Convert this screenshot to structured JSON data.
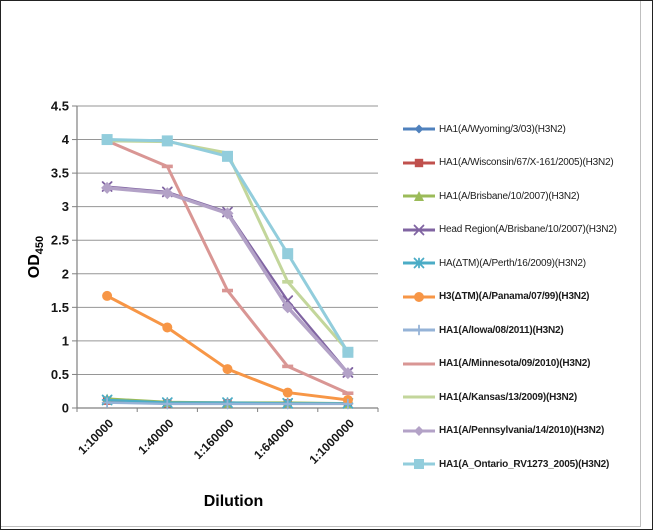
{
  "figure": {
    "title": "",
    "y_axis_label": "OD",
    "y_axis_label_subscript": "450",
    "x_axis_label": "Dilution"
  },
  "colors": {
    "axis": "#808080",
    "gridline": "#969696",
    "tick_label": "#161616",
    "frame_border": "#bfbfbf"
  },
  "chart_data": {
    "type": "line",
    "title": "",
    "xlabel": "Dilution",
    "ylabel": "OD450",
    "ylim": [
      0,
      4.5
    ],
    "ytick_step": 0.5,
    "ytick_labels": [
      "0",
      "0.5",
      "1",
      "1.5",
      "2",
      "2.5",
      "3",
      "3.5",
      "4",
      "4.5"
    ],
    "grid": true,
    "legend_position": "right",
    "categories": [
      "1:10000",
      "1:40000",
      "1:160000",
      "1:640000",
      "1:1000000"
    ],
    "series": [
      {
        "name": "HA1(A/Wyoming/3/03)(H3N2)",
        "color": "#4F81BD",
        "marker": "diamond",
        "marker_size": 4.5,
        "line_width": 2.4,
        "bold_legend": false,
        "values": [
          0.12,
          0.08,
          0.08,
          0.07,
          0.07
        ]
      },
      {
        "name": "HA1(A/Wisconsin/67/X-161/2005)(H3N2)",
        "color": "#C0504D",
        "marker": "square",
        "marker_size": 4.2,
        "line_width": 2.4,
        "bold_legend": false,
        "values": [
          0.11,
          0.07,
          0.07,
          0.07,
          0.07
        ]
      },
      {
        "name": "HA1(A/Brisbane/10/2007)(H3N2)",
        "color": "#9BBB59",
        "marker": "triangle",
        "marker_size": 5.0,
        "line_width": 2.4,
        "bold_legend": false,
        "values": [
          0.14,
          0.09,
          0.08,
          0.08,
          0.07
        ]
      },
      {
        "name": "Head Region(A/Brisbane/10/2007)(H3N2)",
        "color": "#8064A2",
        "marker": "x",
        "marker_size": 4.5,
        "line_width": 2.2,
        "bold_legend": false,
        "values": [
          3.3,
          3.22,
          2.92,
          1.6,
          0.53
        ]
      },
      {
        "name": "HA(ΔTM)(A/Perth/16/2009)(H3N2)",
        "color": "#4BACC6",
        "marker": "asterisk",
        "marker_size": 4.5,
        "line_width": 2.4,
        "bold_legend": false,
        "values": [
          0.12,
          0.08,
          0.08,
          0.07,
          0.07
        ]
      },
      {
        "name": "H3(ΔTM)(A/Panama/07/99)(H3N2)",
        "color": "#F79646",
        "marker": "circle",
        "marker_size": 5.0,
        "line_width": 3.0,
        "bold_legend": true,
        "values": [
          1.67,
          1.2,
          0.58,
          0.23,
          0.12
        ]
      },
      {
        "name": "HA1(A/Iowa/08/2011)(H3N2)",
        "color": "#95B3D7",
        "marker": "plus",
        "marker_size": 4.5,
        "line_width": 2.4,
        "bold_legend": true,
        "values": [
          0.08,
          0.06,
          0.06,
          0.06,
          0.06
        ]
      },
      {
        "name": "HA1(A/Minnesota/09/2010)(H3N2)",
        "color": "#D99694",
        "marker": "dash",
        "marker_size": 4.5,
        "line_width": 3.0,
        "bold_legend": true,
        "values": [
          3.98,
          3.6,
          1.75,
          0.62,
          0.22
        ]
      },
      {
        "name": "HA1(A/Kansas/13/2009)(H3N2)",
        "color": "#C3D69B",
        "marker": "dash",
        "marker_size": 4.5,
        "line_width": 3.0,
        "bold_legend": true,
        "values": [
          3.98,
          3.97,
          3.8,
          1.88,
          0.85
        ]
      },
      {
        "name": "HA1(A/Pennsylvania/14/2010)(H3N2)",
        "color": "#B3A2C7",
        "marker": "diamond",
        "marker_size": 6.0,
        "line_width": 3.5,
        "bold_legend": true,
        "values": [
          3.28,
          3.2,
          2.9,
          1.5,
          0.52
        ]
      },
      {
        "name": "HA1(A_Ontario_RV1273_2005)(H3N2)",
        "color": "#92CDDC",
        "marker": "square",
        "marker_size": 5.5,
        "line_width": 3.0,
        "bold_legend": true,
        "values": [
          4.0,
          3.98,
          3.75,
          2.3,
          0.83
        ]
      }
    ]
  }
}
